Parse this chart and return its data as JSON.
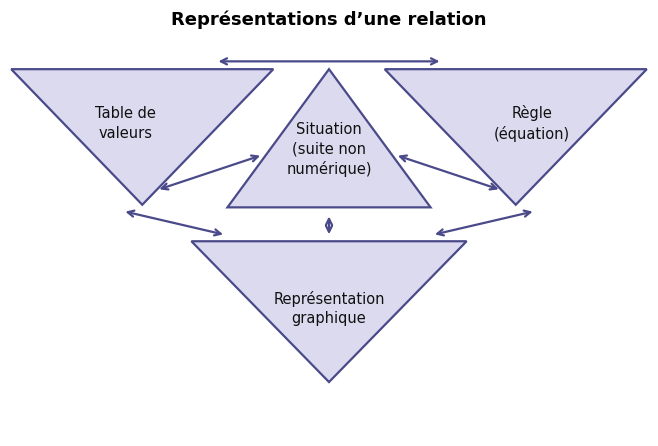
{
  "title": "Représentations d’une relation",
  "title_fontsize": 13,
  "title_fontweight": "bold",
  "bg_color": "#ffffff",
  "triangle_fill": "#dcdaef",
  "triangle_edge": "#4a4a8a",
  "arrow_color": "#4a4a8a",
  "labels": {
    "top_left": "Table de\nvaleurs",
    "top_center": "Situation\n(suite non\nnumérique)",
    "top_right": "Règle\n(équation)",
    "bottom": "Représentation\ngraphique"
  },
  "label_fontsize": 10.5,
  "lw": 1.6
}
